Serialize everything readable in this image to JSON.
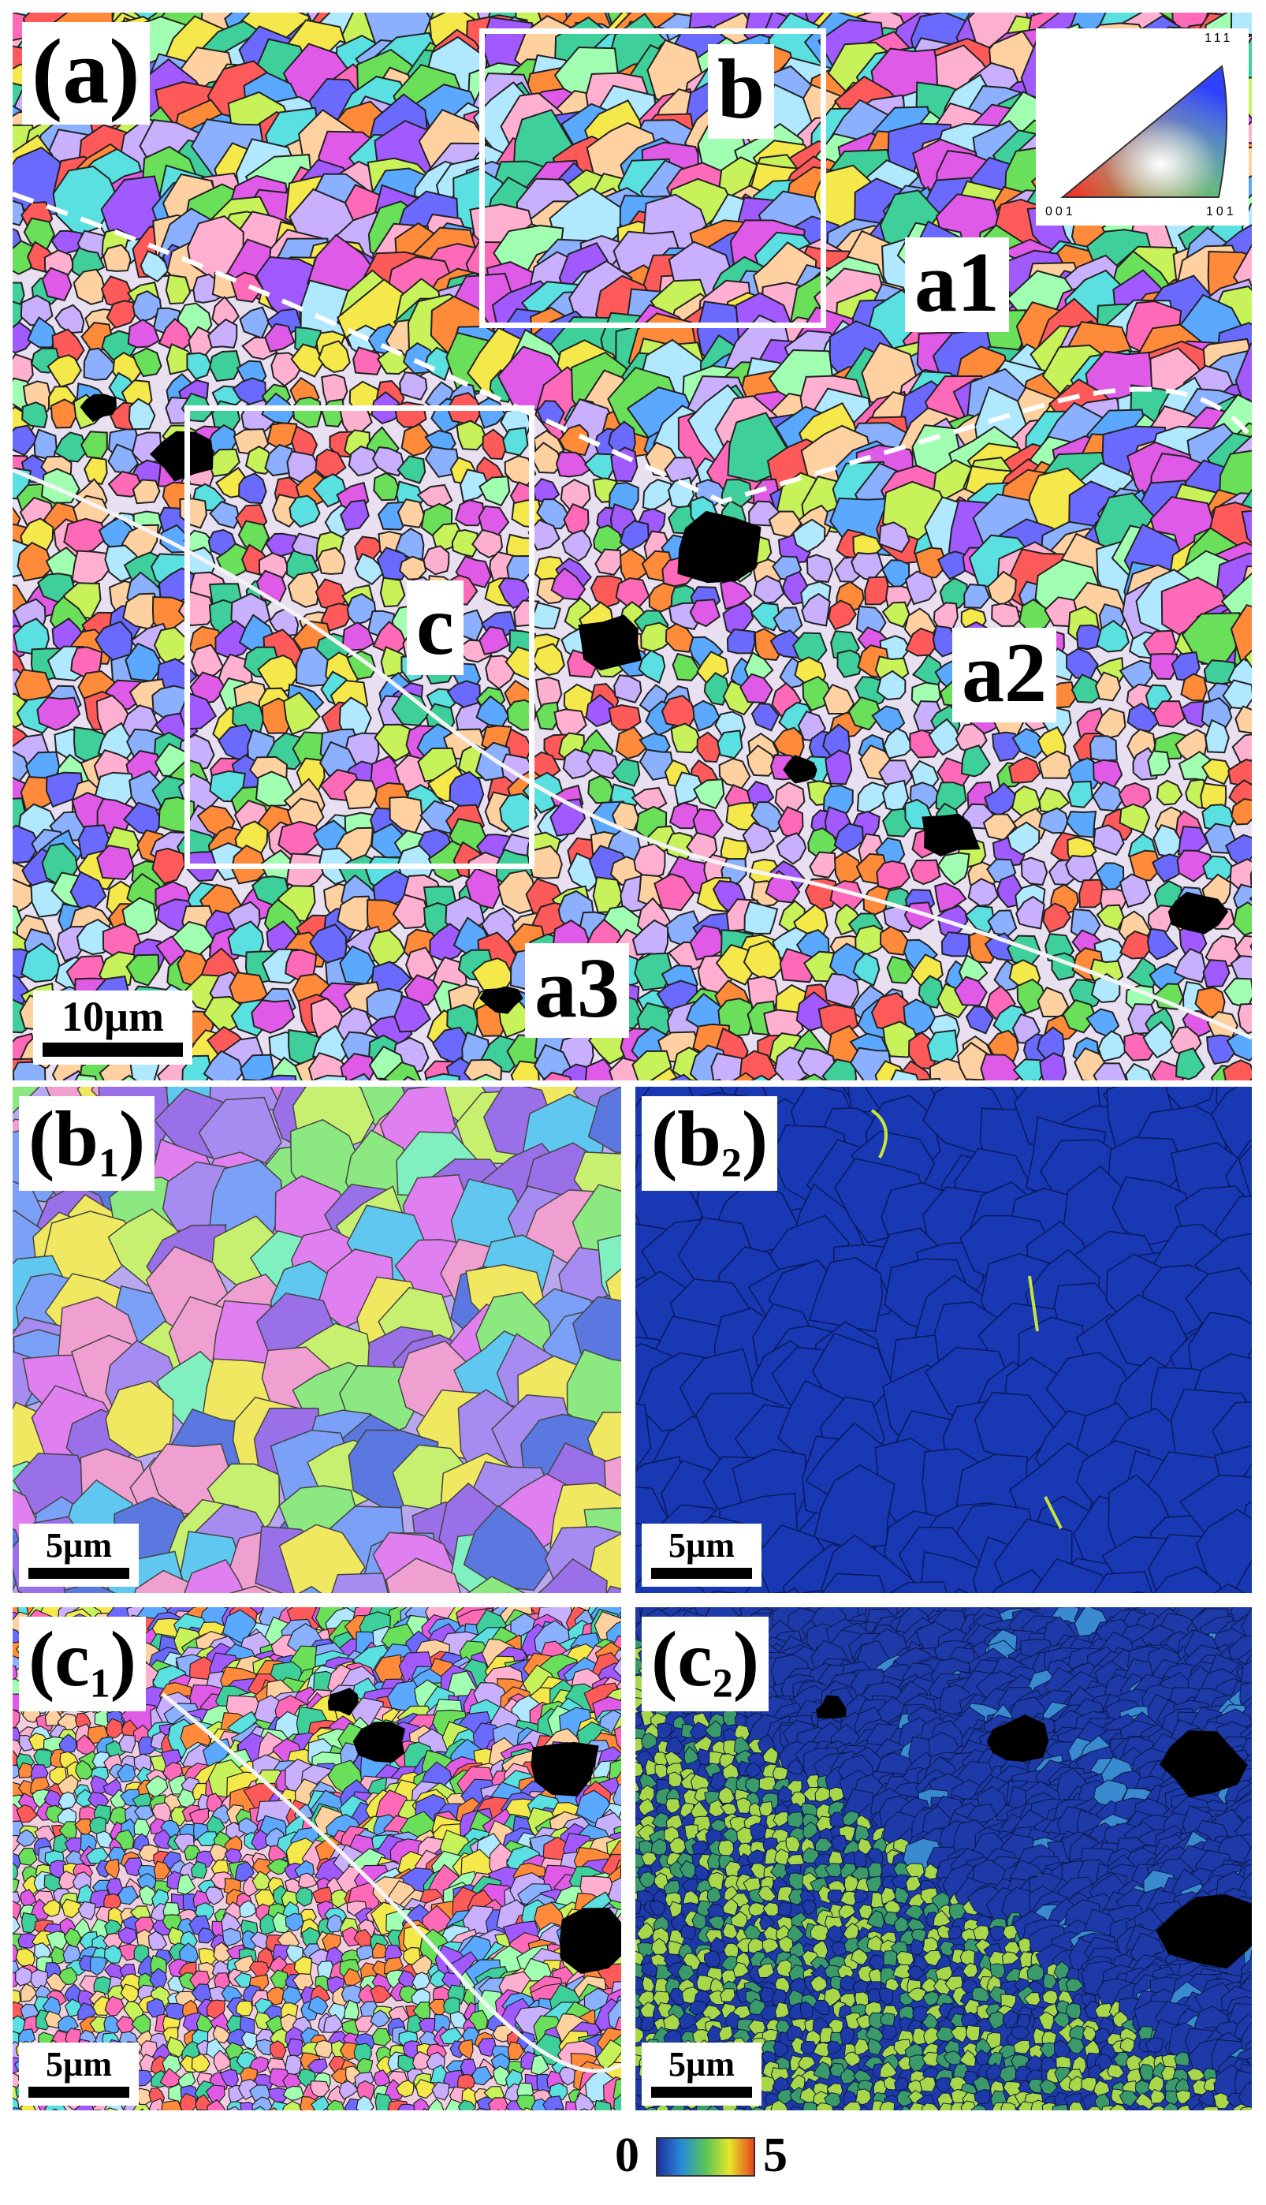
{
  "panels": {
    "a": {
      "label": "(a)"
    },
    "b1": {
      "label": "(b",
      "sub": "1",
      "close": ")",
      "scale": "5µm"
    },
    "b2": {
      "label": "(b",
      "sub": "2",
      "close": ")",
      "scale": "5µm"
    },
    "c1": {
      "label": "(c",
      "sub": "1",
      "close": ")",
      "scale": "5µm"
    },
    "c2": {
      "label": "(c",
      "sub": "2",
      "close": ")",
      "scale": "5µm"
    }
  },
  "main": {
    "region_labels": {
      "a1": "a1",
      "a2": "a2",
      "a3": "a3"
    },
    "box_labels": {
      "b": "b",
      "c": "c"
    },
    "scale": "10µm"
  },
  "ipf_legend": {
    "top": "111",
    "left": "001",
    "right": "101"
  },
  "colorbar": {
    "min": "0",
    "max": "5",
    "colors": [
      "#1a2f9e",
      "#2a8ad8",
      "#58c45a",
      "#e6e62a",
      "#e8451c"
    ]
  },
  "ipf_palette": [
    "#ff5a5a",
    "#ff8a3a",
    "#f5e84a",
    "#c8f25a",
    "#6ae05a",
    "#3ecf9a",
    "#5ae0e0",
    "#5aa8ff",
    "#6a6aff",
    "#a05aff",
    "#e05ae8",
    "#ff6ab8",
    "#ffb0d0",
    "#b0e8ff",
    "#c8b0ff",
    "#a0ffb0",
    "#ffd0a0",
    "#8ab0ff"
  ],
  "kam_colors": {
    "base": "#1838b4",
    "boundary": "#0a1a5a",
    "hot": "#c8e63a"
  }
}
